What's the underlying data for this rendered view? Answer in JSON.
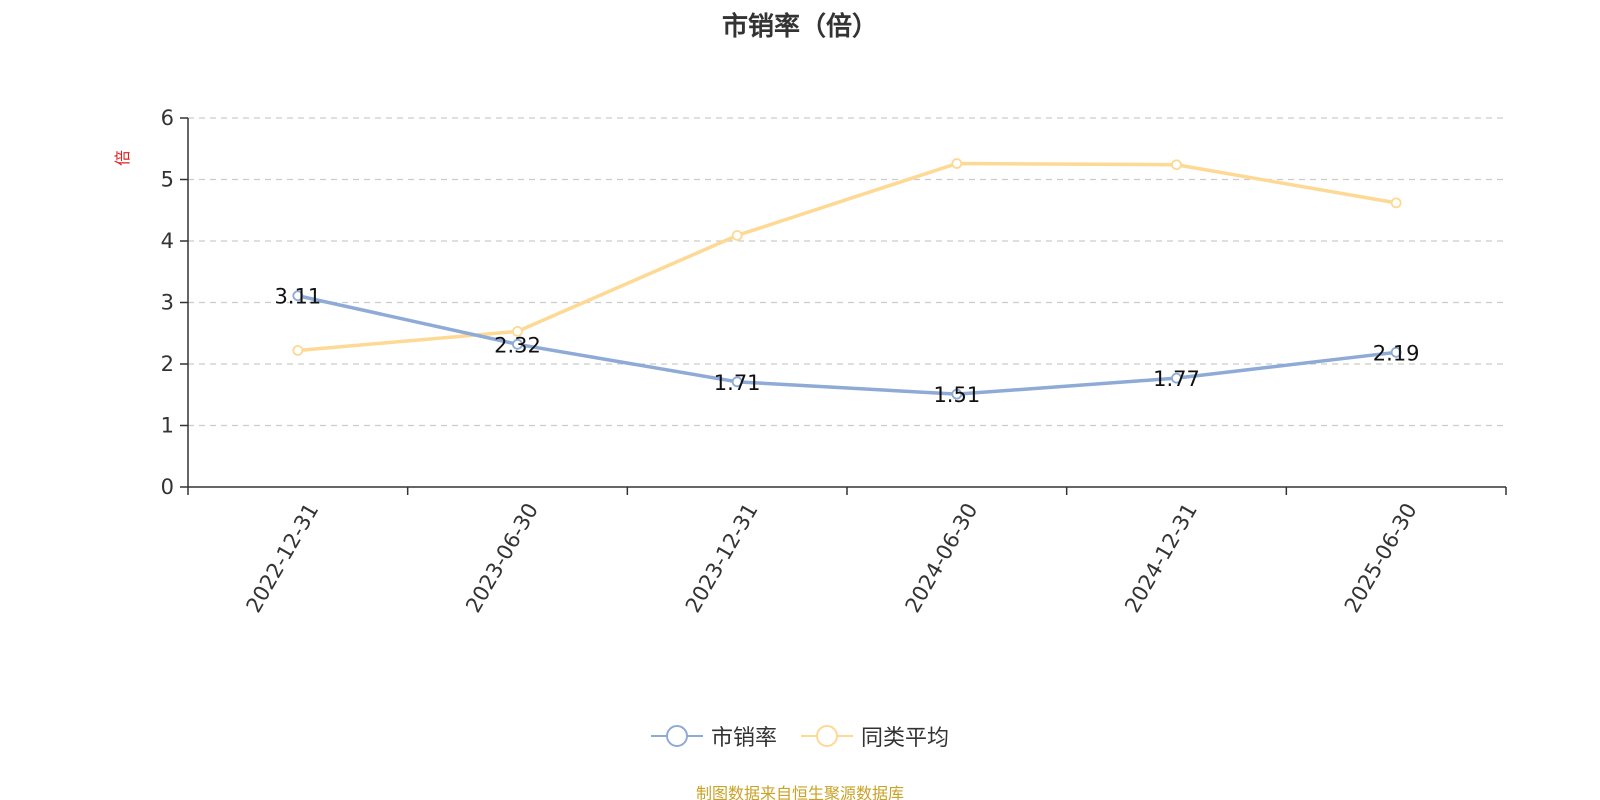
{
  "chart_data": {
    "type": "line",
    "title": "市销率（倍）",
    "ylabel": "倍",
    "xlabel": "",
    "categories": [
      "2022-12-31",
      "2023-06-30",
      "2023-12-31",
      "2024-06-30",
      "2024-12-31",
      "2025-06-30"
    ],
    "ylim": [
      0,
      6
    ],
    "yticks": [
      0,
      1,
      2,
      3,
      4,
      5,
      6
    ],
    "grid": true,
    "legend_position": "bottom-center",
    "series": [
      {
        "name": "市销率",
        "color": "#8eaad6",
        "values": [
          3.11,
          2.32,
          1.71,
          1.51,
          1.77,
          2.19
        ],
        "data_labels": [
          "3.11",
          "2.32",
          "1.71",
          "1.51",
          "1.77",
          "2.19"
        ]
      },
      {
        "name": "同类平均",
        "color": "#fdd994",
        "values": [
          2.22,
          2.53,
          4.09,
          5.26,
          5.24,
          4.62
        ]
      }
    ],
    "ylabel_color": "#e02020"
  },
  "source_note": "制图数据来自恒生聚源数据库",
  "source_note_color": "#c9a227"
}
